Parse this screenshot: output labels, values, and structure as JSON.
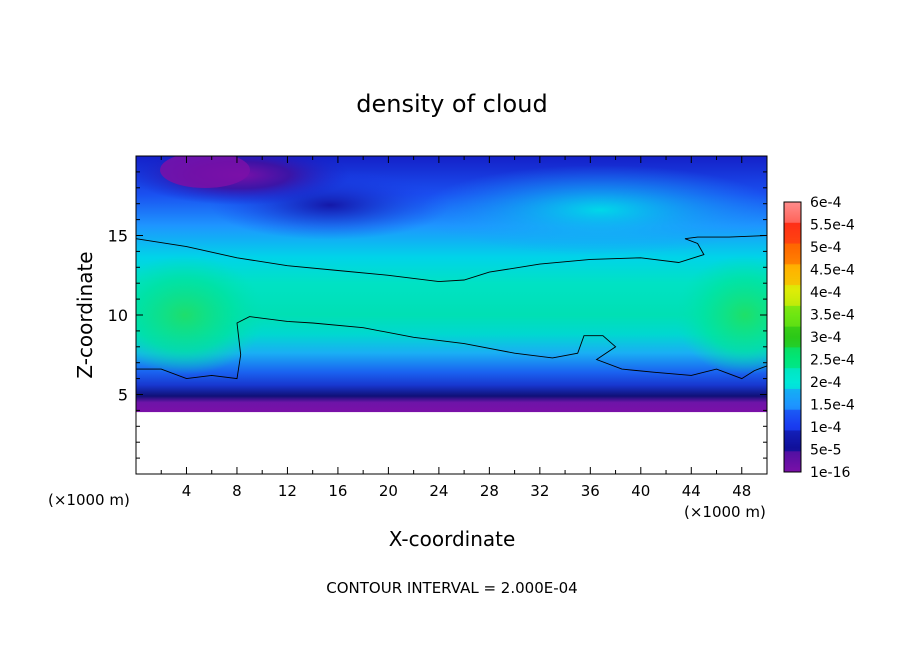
{
  "chart_data": {
    "type": "heatmap",
    "title": "density of cloud",
    "xlabel": "X-coordinate",
    "ylabel": "Z-coordinate",
    "x_units": "(×1000 m)",
    "x_units_right": "(×1000 m)",
    "footer": "CONTOUR INTERVAL = 2.000E-04",
    "xlim": [
      0,
      50
    ],
    "ylim": [
      0,
      20
    ],
    "x_ticks": [
      {
        "value": 4,
        "label": "4"
      },
      {
        "value": 8,
        "label": "8"
      },
      {
        "value": 12,
        "label": "12"
      },
      {
        "value": 16,
        "label": "16"
      },
      {
        "value": 20,
        "label": "20"
      },
      {
        "value": 24,
        "label": "24"
      },
      {
        "value": 28,
        "label": "28"
      },
      {
        "value": 32,
        "label": "32"
      },
      {
        "value": 36,
        "label": "36"
      },
      {
        "value": 40,
        "label": "40"
      },
      {
        "value": 44,
        "label": "44"
      },
      {
        "value": 48,
        "label": "48"
      }
    ],
    "y_ticks": [
      {
        "value": 5,
        "label": "5"
      },
      {
        "value": 10,
        "label": "10"
      },
      {
        "value": 15,
        "label": "15"
      }
    ],
    "colorbar": [
      {
        "label": "1e-16",
        "color": "#7a10a8"
      },
      {
        "label": "5e-5",
        "color": "#10109a"
      },
      {
        "label": "1e-4",
        "color": "#1a3cf0"
      },
      {
        "label": "1.5e-4",
        "color": "#1e96ff"
      },
      {
        "label": "2e-4",
        "color": "#00e8d8"
      },
      {
        "label": "2.5e-4",
        "color": "#00e678"
      },
      {
        "label": "3e-4",
        "color": "#2cc818"
      },
      {
        "label": "3.5e-4",
        "color": "#6ee612"
      },
      {
        "label": "4e-4",
        "color": "#dcec08"
      },
      {
        "label": "4.5e-4",
        "color": "#ffb400"
      },
      {
        "label": "5e-4",
        "color": "#ff6a00"
      },
      {
        "label": "5.5e-4",
        "color": "#ff3018"
      },
      {
        "label": "6e-4",
        "color": "#ff8c8c"
      }
    ],
    "field_notes": [
      "cloud-free (white) below z ≈ 3",
      "minimum (purple) near x = 4–8, z ≈ 18",
      "band 1e-4–2e-4 between z ≈ 6 and z ≈ 14",
      "local maxima ≈ 2.5e-4 near x = 2, z = 10 and x = 47, z = 10"
    ],
    "contour_upper": [
      [
        0,
        14.8
      ],
      [
        4,
        14.3
      ],
      [
        8,
        13.6
      ],
      [
        12,
        13.1
      ],
      [
        16,
        12.8
      ],
      [
        20,
        12.5
      ],
      [
        24,
        12.1
      ],
      [
        26,
        12.2
      ],
      [
        28,
        12.7
      ],
      [
        32,
        13.2
      ],
      [
        36,
        13.5
      ],
      [
        40,
        13.6
      ],
      [
        43,
        13.3
      ],
      [
        45,
        13.8
      ],
      [
        44.5,
        14.5
      ],
      [
        43.5,
        14.8
      ],
      [
        44.5,
        14.9
      ],
      [
        47,
        14.9
      ],
      [
        50,
        15.0
      ]
    ],
    "contour_lower": [
      [
        0,
        6.6
      ],
      [
        2,
        6.6
      ],
      [
        4,
        6.0
      ],
      [
        6,
        6.2
      ],
      [
        8,
        6.0
      ],
      [
        8.3,
        7.5
      ],
      [
        8,
        9.5
      ],
      [
        9,
        9.9
      ],
      [
        12,
        9.6
      ],
      [
        14,
        9.5
      ],
      [
        18,
        9.2
      ],
      [
        22,
        8.6
      ],
      [
        26,
        8.2
      ],
      [
        30,
        7.6
      ],
      [
        33,
        7.3
      ],
      [
        35,
        7.6
      ],
      [
        35.5,
        8.7
      ],
      [
        37,
        8.7
      ],
      [
        38,
        8.0
      ],
      [
        36.5,
        7.2
      ],
      [
        38.5,
        6.6
      ],
      [
        41,
        6.4
      ],
      [
        44,
        6.2
      ],
      [
        46,
        6.6
      ],
      [
        48,
        6.0
      ],
      [
        49,
        6.5
      ],
      [
        50,
        6.8
      ]
    ]
  }
}
